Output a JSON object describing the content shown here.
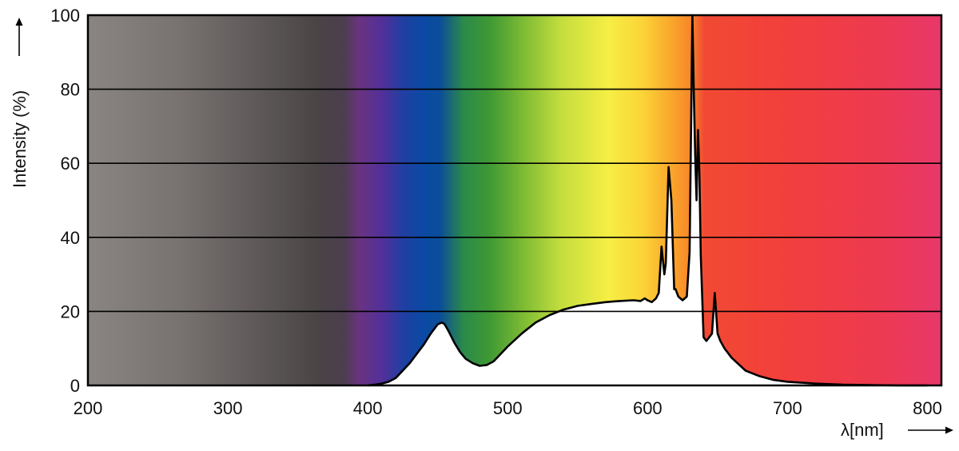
{
  "chart_data": {
    "type": "area",
    "title": "",
    "ylabel": "Intensity (%)",
    "xlabel": "λ[nm]",
    "xlim": [
      200,
      810
    ],
    "ylim": [
      0,
      100
    ],
    "x_ticks": [
      200,
      300,
      400,
      500,
      600,
      700,
      800
    ],
    "y_ticks": [
      0,
      20,
      40,
      60,
      80,
      100
    ],
    "grid": "horizontal",
    "legend": "none",
    "background": "visible light spectrum colour gradient (gray UV region, violet, blue, green, yellow, orange, red)",
    "series": [
      {
        "x": [
          400,
          405,
          410,
          415,
          420,
          425,
          430,
          435,
          440,
          445,
          450,
          453,
          455,
          458,
          462,
          466,
          470,
          475,
          480,
          485,
          490,
          495,
          500,
          510,
          520,
          530,
          540,
          550,
          560,
          570,
          580,
          590,
          595,
          598,
          600,
          603,
          606,
          608,
          610,
          612,
          613,
          615,
          617,
          619,
          620,
          622,
          625,
          628,
          630,
          632,
          633,
          634,
          635,
          636,
          637,
          638,
          640,
          642,
          644,
          646,
          648,
          650,
          652,
          655,
          660,
          670,
          680,
          690,
          700,
          720,
          740,
          760,
          780,
          800
        ],
        "y": [
          0,
          0.2,
          0.5,
          1,
          2,
          4,
          6,
          8.5,
          11,
          14,
          16.5,
          17,
          16.5,
          14.5,
          11.5,
          9,
          7.2,
          6,
          5.3,
          5.5,
          6.5,
          8.5,
          10.5,
          14,
          17,
          19,
          20.5,
          21.5,
          22,
          22.5,
          22.8,
          23,
          22.8,
          23.5,
          23,
          22.5,
          23.5,
          25,
          37.5,
          30,
          33,
          59,
          50,
          26,
          26,
          24,
          23,
          24,
          36,
          100,
          80,
          62,
          50,
          69,
          58,
          35,
          13,
          12,
          13,
          14,
          25,
          14,
          12,
          10,
          7.5,
          4,
          2.5,
          1.5,
          1,
          0.5,
          0.2,
          0.1,
          0,
          0
        ]
      }
    ]
  }
}
